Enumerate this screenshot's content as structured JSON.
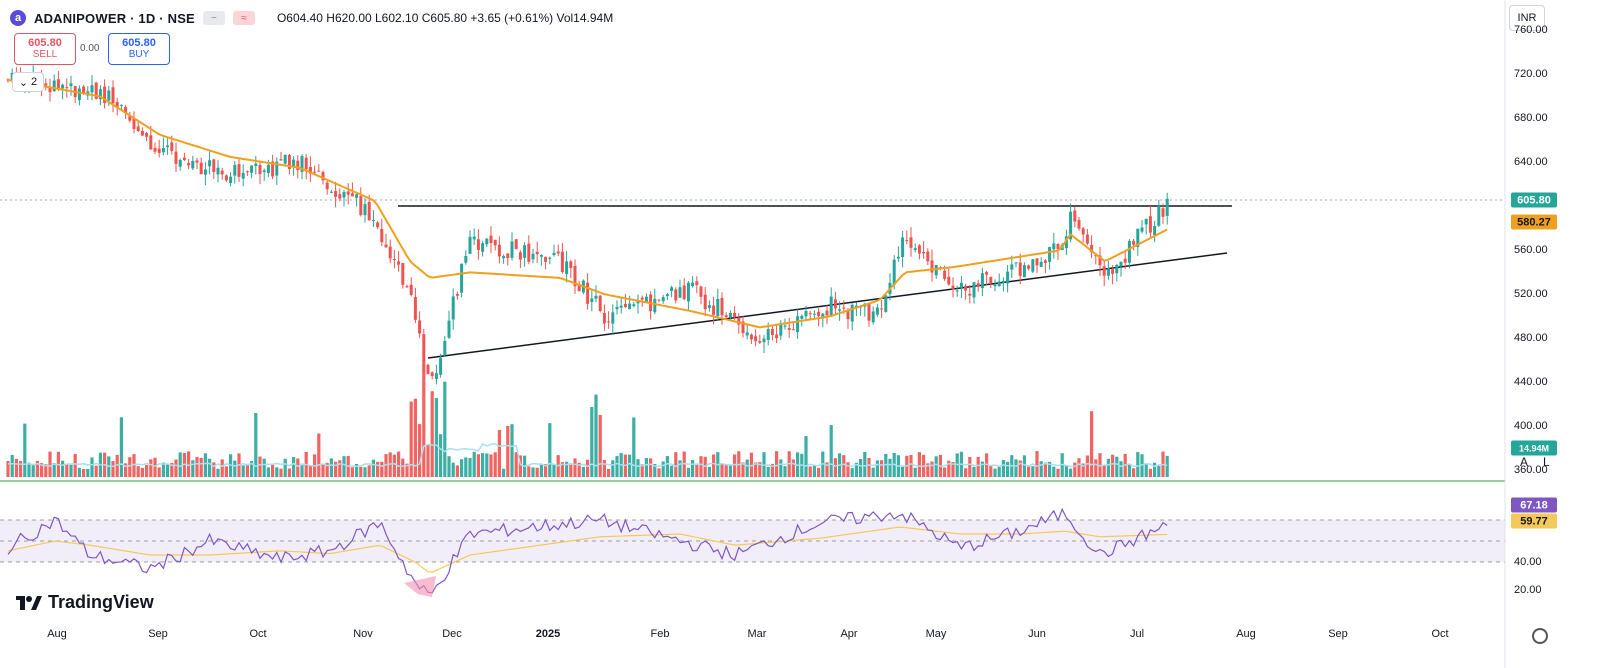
{
  "header": {
    "logo_letter": "a",
    "title": "ADANIPOWER · 1D · NSE",
    "minus_icon": "−",
    "wave_icon": "≈",
    "ohlc": "O604.40  H620.00  L602.10  C605.80  +3.65 (+0.61%)  Vol14.94M"
  },
  "trade": {
    "sell_price": "605.80",
    "sell_label": "SELL",
    "spread": "0.00",
    "buy_price": "605.80",
    "buy_label": "BUY"
  },
  "collapse_label": "2",
  "currency": "INR",
  "branding": "TradingView",
  "price_axis": {
    "ticks": [
      760,
      720,
      680,
      640,
      560,
      520,
      480,
      440,
      400,
      360
    ]
  },
  "rsi_axis": {
    "ticks": [
      40,
      20
    ]
  },
  "time_axis": {
    "labels": [
      "Aug",
      "Sep",
      "Oct",
      "Nov",
      "Dec",
      "2025",
      "Feb",
      "Mar",
      "Apr",
      "May",
      "Jun",
      "Jul",
      "Aug",
      "Sep",
      "Oct"
    ]
  },
  "tags": {
    "close": "605.80",
    "ma": "580.27",
    "rsi": "67.18",
    "rsi_ma": "59.77",
    "volume": "14.94M"
  },
  "scale_buttons": {
    "auto": "A",
    "log": "L"
  },
  "colors": {
    "up": "#26a69a",
    "down": "#ef5350",
    "ma": "#f0a020",
    "rsi": "#7e57c2",
    "rsi_ma": "#f5c85c",
    "vol_ma": "#a8e0f0"
  },
  "chart_data": [
    {
      "type": "candlestick",
      "title": "ADANIPOWER · 1D · NSE",
      "ylim": [
        340,
        780
      ],
      "series": [
        {
          "name": "close",
          "x": [
            "2024-07-25",
            "2024-08-15",
            "2024-09-05",
            "2024-09-26",
            "2024-10-17",
            "2024-11-07",
            "2024-11-19",
            "2024-11-21",
            "2024-12-05",
            "2025-01-02",
            "2025-01-14",
            "2025-02-05",
            "2025-02-27",
            "2025-03-20",
            "2025-04-07",
            "2025-04-22",
            "2025-05-12",
            "2025-06-02",
            "2025-06-11",
            "2025-06-24",
            "2025-07-11"
          ],
          "values": [
            715,
            705,
            650,
            630,
            640,
            590,
            520,
            430,
            570,
            550,
            500,
            525,
            480,
            510,
            500,
            575,
            520,
            560,
            590,
            535,
            606
          ]
        },
        {
          "name": "MA",
          "values": [
            715,
            700,
            665,
            645,
            635,
            605,
            550,
            535,
            540,
            535,
            520,
            505,
            490,
            500,
            515,
            540,
            545,
            560,
            575,
            550,
            580.27
          ]
        }
      ],
      "annotations": [
        "resistance line ~600",
        "rising support line 425→545"
      ]
    },
    {
      "type": "bar",
      "name": "Volume",
      "last": "14.94M"
    },
    {
      "type": "line",
      "name": "RSI",
      "ylim": [
        10,
        80
      ],
      "bands": [
        40,
        70
      ],
      "last": 67.18,
      "ma_last": 59.77
    }
  ]
}
